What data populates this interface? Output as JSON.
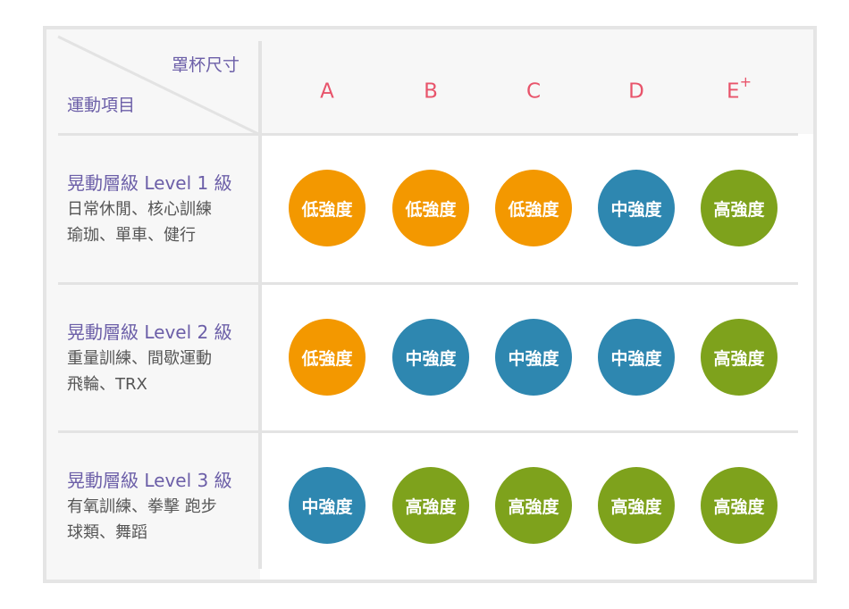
{
  "header": {
    "cup_size_label": "罩杯尺寸",
    "sport_label": "運動項目",
    "columns": [
      {
        "letter": "A",
        "sup": ""
      },
      {
        "letter": "B",
        "sup": ""
      },
      {
        "letter": "C",
        "sup": ""
      },
      {
        "letter": "D",
        "sup": ""
      },
      {
        "letter": "E",
        "sup": "+"
      }
    ]
  },
  "colors": {
    "低強度": "#f39800",
    "中強度": "#2e87b0",
    "高強度": "#7ea21c",
    "accent_purple": "#6c5fa8",
    "header_pink": "#e8546b"
  },
  "rows": [
    {
      "level": "晃動層級 Level 1 級",
      "desc1": "日常休閒、核心訓練",
      "desc2": "瑜珈、單車、健行",
      "cells": [
        "低強度",
        "低強度",
        "低強度",
        "中強度",
        "高強度"
      ]
    },
    {
      "level": "晃動層級 Level 2 級",
      "desc1": "重量訓練、間歇運動",
      "desc2": "飛輪、TRX",
      "cells": [
        "低強度",
        "中強度",
        "中強度",
        "中強度",
        "高強度"
      ]
    },
    {
      "level": "晃動層級 Level 3 級",
      "desc1": "有氧訓練、拳擊 跑步",
      "desc2": "球類、舞蹈",
      "cells": [
        "中強度",
        "高強度",
        "高強度",
        "高強度",
        "高強度"
      ]
    }
  ]
}
